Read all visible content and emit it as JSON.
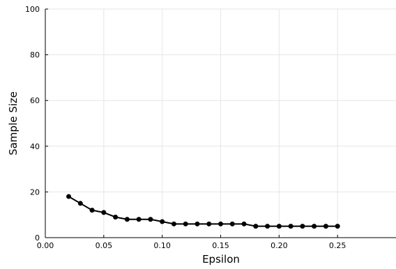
{
  "chart_data": {
    "type": "line",
    "title": "",
    "xlabel": "Epsilon",
    "ylabel": "Sample Size",
    "xlim": [
      0,
      0.3
    ],
    "ylim": [
      0,
      100
    ],
    "x_ticks": [
      0,
      0.05,
      0.1,
      0.15,
      0.2,
      0.25
    ],
    "x_tick_labels": [
      "0.00",
      "0.05",
      "0.10",
      "0.15",
      "0.20",
      "0.25"
    ],
    "y_ticks": [
      0,
      20,
      40,
      60,
      80,
      100
    ],
    "y_tick_labels": [
      "0",
      "20",
      "40",
      "60",
      "80",
      "100"
    ],
    "grid": true,
    "legend": "none",
    "series": [
      {
        "color": "#000000",
        "marker": "circle",
        "x": [
          0.02,
          0.03,
          0.04,
          0.05,
          0.06,
          0.07,
          0.08,
          0.09,
          0.1,
          0.11,
          0.12,
          0.13,
          0.14,
          0.15,
          0.16,
          0.17,
          0.18,
          0.19,
          0.2,
          0.21,
          0.22,
          0.23,
          0.24,
          0.25
        ],
        "y": [
          18,
          15,
          12,
          11,
          9,
          8,
          8,
          8,
          7,
          6,
          6,
          6,
          6,
          6,
          6,
          6,
          5,
          5,
          5,
          5,
          5,
          5,
          5,
          5
        ]
      }
    ]
  }
}
